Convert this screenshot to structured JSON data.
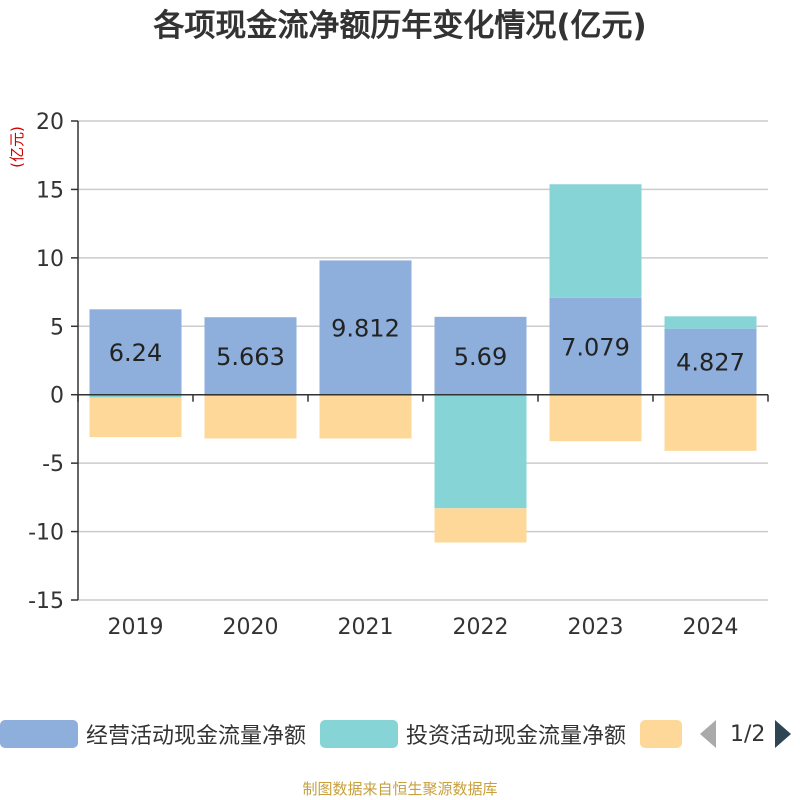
{
  "title": "各项现金流净额历年变化情况(亿元)",
  "source": "制图数据来自恒生聚源数据库",
  "chart_data": {
    "type": "bar",
    "stacked": true,
    "title": "各项现金流净额历年变化情况(亿元)",
    "ylabel": "(亿元)",
    "xlabel": "",
    "categories": [
      "2019",
      "2020",
      "2021",
      "2022",
      "2023",
      "2024"
    ],
    "ylim": [
      -15,
      20
    ],
    "yticks": [
      20,
      15,
      10,
      5,
      0,
      -5,
      -10,
      -15
    ],
    "series": [
      {
        "name": "经营活动现金流量净额",
        "color": "#8eaedb",
        "values": [
          6.24,
          5.663,
          9.812,
          5.69,
          7.079,
          4.827
        ],
        "labels": [
          "6.24",
          "5.663",
          "9.812",
          "5.69",
          "7.079",
          "4.827"
        ]
      },
      {
        "name": "投资活动现金流量净额",
        "color": "#87d4d6",
        "values": [
          -0.2,
          -0.1,
          0.0,
          -8.3,
          8.3,
          0.9
        ]
      },
      {
        "name": "",
        "color": "#fed898",
        "values": [
          -2.9,
          -3.1,
          -3.2,
          -2.5,
          -3.4,
          -4.1
        ]
      }
    ]
  },
  "legend": {
    "page": "1/2"
  }
}
